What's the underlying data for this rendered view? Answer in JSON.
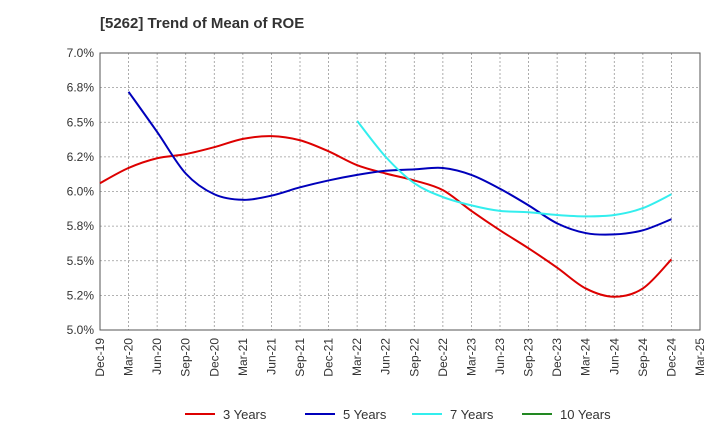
{
  "chart_data": {
    "type": "line",
    "title": "[5262]  Trend of Mean of ROE",
    "xlabel": "",
    "ylabel": "",
    "x": [
      "Dec-19",
      "Mar-20",
      "Jun-20",
      "Sep-20",
      "Dec-20",
      "Mar-21",
      "Jun-21",
      "Sep-21",
      "Dec-21",
      "Mar-22",
      "Jun-22",
      "Sep-22",
      "Dec-22",
      "Mar-23",
      "Jun-23",
      "Sep-23",
      "Dec-23",
      "Mar-24",
      "Jun-24",
      "Sep-24",
      "Dec-24",
      "Mar-25"
    ],
    "ylim": [
      5.0,
      7.0
    ],
    "yticks": [
      "5.0%",
      "5.2%",
      "5.5%",
      "5.8%",
      "6.0%",
      "6.2%",
      "6.5%",
      "6.8%",
      "7.0%"
    ],
    "grid": true,
    "legend_position": "bottom",
    "series": [
      {
        "name": "3 Years",
        "color": "#dd0000",
        "values": [
          6.06,
          6.17,
          6.24,
          6.27,
          6.32,
          6.38,
          6.4,
          6.37,
          6.29,
          6.19,
          6.13,
          6.08,
          6.01,
          5.86,
          5.72,
          5.59,
          5.45,
          5.3,
          5.24,
          5.3,
          5.51,
          null
        ]
      },
      {
        "name": "5 Years",
        "color": "#0000bb",
        "values": [
          null,
          6.72,
          6.43,
          6.13,
          5.98,
          5.94,
          5.97,
          6.03,
          6.08,
          6.12,
          6.15,
          6.16,
          6.17,
          6.12,
          6.02,
          5.9,
          5.77,
          5.7,
          5.69,
          5.72,
          5.8,
          null
        ]
      },
      {
        "name": "7 Years",
        "color": "#33eeee",
        "values": [
          null,
          null,
          null,
          null,
          null,
          null,
          null,
          null,
          null,
          6.51,
          6.25,
          6.06,
          5.96,
          5.9,
          5.86,
          5.85,
          5.83,
          5.82,
          5.83,
          5.88,
          5.98,
          null
        ]
      },
      {
        "name": "10 Years",
        "color": "#228822",
        "values": [
          null,
          null,
          null,
          null,
          null,
          null,
          null,
          null,
          null,
          null,
          null,
          null,
          null,
          null,
          null,
          null,
          null,
          null,
          null,
          null,
          null,
          null
        ]
      }
    ]
  }
}
